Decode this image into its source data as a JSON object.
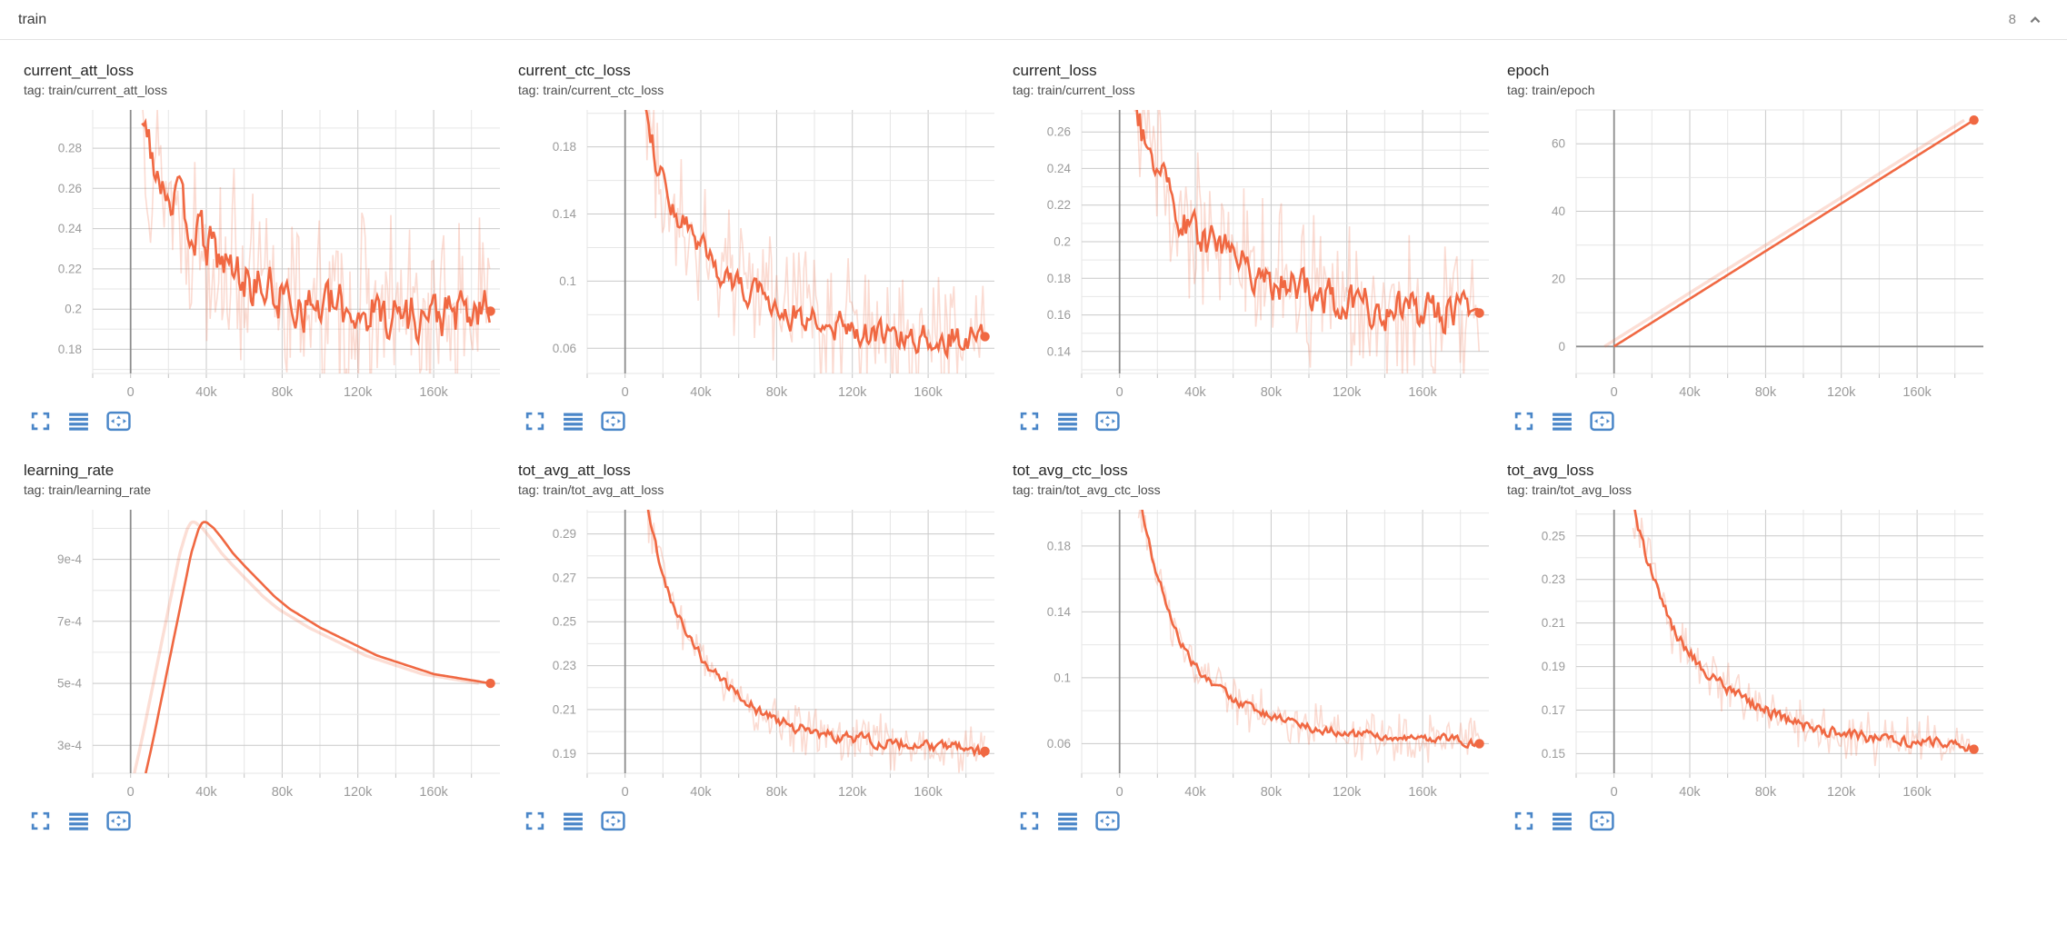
{
  "header": {
    "title": "train",
    "count": "8"
  },
  "colors": {
    "accent": "#f06842",
    "raw_opacity": 0.24,
    "icon_blue": "#4a86c8",
    "zero_line": "#8d8d8d",
    "grid_major": "#c9c9c9",
    "grid_minor": "#e6e6e6",
    "tick_label": "#9b9b9b"
  },
  "axis": {
    "x_domain": [
      -20000,
      195000
    ],
    "x_minor_step": 20000,
    "x_ticks": [
      {
        "v": 0,
        "label": "0"
      },
      {
        "v": 40000,
        "label": "40k"
      },
      {
        "v": 80000,
        "label": "80k"
      },
      {
        "v": 120000,
        "label": "120k"
      },
      {
        "v": 160000,
        "label": "160k"
      }
    ]
  },
  "chart_data": [
    {
      "type": "line",
      "title": "current_att_loss",
      "tag": "tag: train/current_att_loss",
      "y_domain": [
        0.168,
        0.299
      ],
      "y_minor_step": 0.01,
      "y_ticks": [
        {
          "v": 0.18,
          "label": "0.18"
        },
        {
          "v": 0.2,
          "label": "0.2"
        },
        {
          "v": 0.22,
          "label": "0.22"
        },
        {
          "v": 0.24,
          "label": "0.24"
        },
        {
          "v": 0.26,
          "label": "0.26"
        },
        {
          "v": 0.28,
          "label": "0.28"
        }
      ],
      "smoothed": [
        [
          6000,
          0.302
        ],
        [
          10000,
          0.285
        ],
        [
          14000,
          0.272
        ],
        [
          18000,
          0.262
        ],
        [
          22000,
          0.258
        ],
        [
          26000,
          0.25
        ],
        [
          30000,
          0.245
        ],
        [
          35000,
          0.237
        ],
        [
          40000,
          0.232
        ],
        [
          45000,
          0.227
        ],
        [
          50000,
          0.222
        ],
        [
          60000,
          0.215
        ],
        [
          70000,
          0.21
        ],
        [
          80000,
          0.206
        ],
        [
          90000,
          0.203
        ],
        [
          100000,
          0.201
        ],
        [
          110000,
          0.2
        ],
        [
          120000,
          0.199
        ],
        [
          130000,
          0.198
        ],
        [
          140000,
          0.198
        ],
        [
          150000,
          0.197
        ],
        [
          160000,
          0.197
        ],
        [
          170000,
          0.197
        ],
        [
          180000,
          0.197
        ],
        [
          190000,
          0.199
        ]
      ],
      "line_noise": 0.0085,
      "raw_noise": 0.02,
      "final_value": 0.199
    },
    {
      "type": "line",
      "title": "current_ctc_loss",
      "tag": "tag: train/current_ctc_loss",
      "y_domain": [
        0.045,
        0.202
      ],
      "y_minor_step": 0.02,
      "y_ticks": [
        {
          "v": 0.06,
          "label": "0.06"
        },
        {
          "v": 0.1,
          "label": "0.1"
        },
        {
          "v": 0.14,
          "label": "0.14"
        },
        {
          "v": 0.18,
          "label": "0.18"
        }
      ],
      "smoothed": [
        [
          8000,
          0.21
        ],
        [
          12000,
          0.195
        ],
        [
          16000,
          0.175
        ],
        [
          20000,
          0.16
        ],
        [
          24000,
          0.148
        ],
        [
          28000,
          0.138
        ],
        [
          32000,
          0.13
        ],
        [
          36000,
          0.124
        ],
        [
          40000,
          0.118
        ],
        [
          45000,
          0.112
        ],
        [
          50000,
          0.107
        ],
        [
          55000,
          0.102
        ],
        [
          60000,
          0.098
        ],
        [
          70000,
          0.091
        ],
        [
          80000,
          0.085
        ],
        [
          90000,
          0.08
        ],
        [
          100000,
          0.077
        ],
        [
          110000,
          0.074
        ],
        [
          120000,
          0.072
        ],
        [
          130000,
          0.07
        ],
        [
          140000,
          0.069
        ],
        [
          150000,
          0.068
        ],
        [
          160000,
          0.067
        ],
        [
          170000,
          0.066
        ],
        [
          180000,
          0.066
        ],
        [
          190000,
          0.067
        ]
      ],
      "line_noise": 0.0065,
      "raw_noise": 0.016,
      "final_value": 0.067
    },
    {
      "type": "line",
      "title": "current_loss",
      "tag": "tag: train/current_loss",
      "y_domain": [
        0.128,
        0.272
      ],
      "y_minor_step": 0.01,
      "y_ticks": [
        {
          "v": 0.14,
          "label": "0.14"
        },
        {
          "v": 0.16,
          "label": "0.16"
        },
        {
          "v": 0.18,
          "label": "0.18"
        },
        {
          "v": 0.2,
          "label": "0.2"
        },
        {
          "v": 0.22,
          "label": "0.22"
        },
        {
          "v": 0.24,
          "label": "0.24"
        },
        {
          "v": 0.26,
          "label": "0.26"
        }
      ],
      "smoothed": [
        [
          8000,
          0.275
        ],
        [
          12000,
          0.258
        ],
        [
          16000,
          0.245
        ],
        [
          20000,
          0.236
        ],
        [
          24000,
          0.228
        ],
        [
          28000,
          0.221
        ],
        [
          32000,
          0.216
        ],
        [
          36000,
          0.211
        ],
        [
          40000,
          0.207
        ],
        [
          45000,
          0.202
        ],
        [
          50000,
          0.198
        ],
        [
          55000,
          0.194
        ],
        [
          60000,
          0.191
        ],
        [
          70000,
          0.185
        ],
        [
          80000,
          0.18
        ],
        [
          90000,
          0.175
        ],
        [
          100000,
          0.172
        ],
        [
          110000,
          0.169
        ],
        [
          120000,
          0.167
        ],
        [
          130000,
          0.165
        ],
        [
          140000,
          0.163
        ],
        [
          150000,
          0.162
        ],
        [
          160000,
          0.161
        ],
        [
          170000,
          0.16
        ],
        [
          180000,
          0.159
        ],
        [
          190000,
          0.161
        ]
      ],
      "line_noise": 0.0075,
      "raw_noise": 0.017,
      "final_value": 0.161
    },
    {
      "type": "line",
      "title": "epoch",
      "tag": "tag: train/epoch",
      "y_domain": [
        -8,
        70
      ],
      "y_minor_step": 10,
      "y_ticks": [
        {
          "v": 0,
          "label": "0"
        },
        {
          "v": 20,
          "label": "20"
        },
        {
          "v": 40,
          "label": "40"
        },
        {
          "v": 60,
          "label": "60"
        }
      ],
      "smoothed": [
        [
          0,
          0
        ],
        [
          190000,
          67
        ]
      ],
      "line_noise": 0,
      "raw_noise": 0,
      "raw_shift_x": -5000,
      "final_value": 67
    },
    {
      "type": "line",
      "title": "learning_rate",
      "tag": "tag: train/learning_rate",
      "y_domain": [
        0.00021,
        0.00106
      ],
      "y_minor_step": 0.0001,
      "y_ticks": [
        {
          "v": 0.0003,
          "label": "3e-4"
        },
        {
          "v": 0.0005,
          "label": "5e-4"
        },
        {
          "v": 0.0007,
          "label": "7e-4"
        },
        {
          "v": 0.0009,
          "label": "9e-4"
        }
      ],
      "smoothed": [
        [
          8000,
          0.00021
        ],
        [
          12000,
          0.00032
        ],
        [
          16000,
          0.00044
        ],
        [
          20000,
          0.00056
        ],
        [
          24000,
          0.00068
        ],
        [
          28000,
          0.0008
        ],
        [
          32000,
          0.00092
        ],
        [
          36000,
          0.001
        ],
        [
          38000,
          0.00102
        ],
        [
          40000,
          0.00102
        ],
        [
          44000,
          0.001
        ],
        [
          48000,
          0.00097
        ],
        [
          54000,
          0.00092
        ],
        [
          60000,
          0.00088
        ],
        [
          68000,
          0.00083
        ],
        [
          76000,
          0.00078
        ],
        [
          84000,
          0.00074
        ],
        [
          92000,
          0.00071
        ],
        [
          100000,
          0.00068
        ],
        [
          110000,
          0.00065
        ],
        [
          120000,
          0.00062
        ],
        [
          130000,
          0.00059
        ],
        [
          140000,
          0.00057
        ],
        [
          150000,
          0.00055
        ],
        [
          160000,
          0.00053
        ],
        [
          170000,
          0.00052
        ],
        [
          180000,
          0.00051
        ],
        [
          190000,
          0.0005
        ]
      ],
      "line_noise": 0,
      "raw_noise": 0,
      "raw_shift_x": -6000,
      "final_value": 0.0005
    },
    {
      "type": "line",
      "title": "tot_avg_att_loss",
      "tag": "tag: train/tot_avg_att_loss",
      "y_domain": [
        0.181,
        0.301
      ],
      "y_minor_step": 0.01,
      "y_ticks": [
        {
          "v": 0.19,
          "label": "0.19"
        },
        {
          "v": 0.21,
          "label": "0.21"
        },
        {
          "v": 0.23,
          "label": "0.23"
        },
        {
          "v": 0.25,
          "label": "0.25"
        },
        {
          "v": 0.27,
          "label": "0.27"
        },
        {
          "v": 0.29,
          "label": "0.29"
        }
      ],
      "smoothed": [
        [
          8000,
          0.315
        ],
        [
          12000,
          0.3
        ],
        [
          16000,
          0.285
        ],
        [
          20000,
          0.272
        ],
        [
          24000,
          0.262
        ],
        [
          28000,
          0.252
        ],
        [
          32000,
          0.244
        ],
        [
          36000,
          0.239
        ],
        [
          40000,
          0.234
        ],
        [
          45000,
          0.229
        ],
        [
          50000,
          0.224
        ],
        [
          55000,
          0.22
        ],
        [
          60000,
          0.216
        ],
        [
          70000,
          0.21
        ],
        [
          80000,
          0.206
        ],
        [
          90000,
          0.202
        ],
        [
          100000,
          0.2
        ],
        [
          110000,
          0.198
        ],
        [
          120000,
          0.197
        ],
        [
          130000,
          0.196
        ],
        [
          140000,
          0.195
        ],
        [
          150000,
          0.194
        ],
        [
          160000,
          0.193
        ],
        [
          170000,
          0.193
        ],
        [
          180000,
          0.192
        ],
        [
          190000,
          0.191
        ]
      ],
      "line_noise": 0.0018,
      "raw_noise": 0.005,
      "final_value": 0.191
    },
    {
      "type": "line",
      "title": "tot_avg_ctc_loss",
      "tag": "tag: train/tot_avg_ctc_loss",
      "y_domain": [
        0.042,
        0.202
      ],
      "y_minor_step": 0.02,
      "y_ticks": [
        {
          "v": 0.06,
          "label": "0.06"
        },
        {
          "v": 0.1,
          "label": "0.1"
        },
        {
          "v": 0.14,
          "label": "0.14"
        },
        {
          "v": 0.18,
          "label": "0.18"
        }
      ],
      "smoothed": [
        [
          10000,
          0.21
        ],
        [
          14000,
          0.19
        ],
        [
          18000,
          0.17
        ],
        [
          22000,
          0.155
        ],
        [
          26000,
          0.14
        ],
        [
          30000,
          0.128
        ],
        [
          34000,
          0.118
        ],
        [
          38000,
          0.11
        ],
        [
          42000,
          0.104
        ],
        [
          46000,
          0.099
        ],
        [
          50000,
          0.095
        ],
        [
          55000,
          0.091
        ],
        [
          60000,
          0.087
        ],
        [
          65000,
          0.084
        ],
        [
          70000,
          0.081
        ],
        [
          75000,
          0.079
        ],
        [
          80000,
          0.077
        ],
        [
          90000,
          0.073
        ],
        [
          100000,
          0.07
        ],
        [
          110000,
          0.068
        ],
        [
          120000,
          0.066
        ],
        [
          130000,
          0.065
        ],
        [
          140000,
          0.064
        ],
        [
          150000,
          0.064
        ],
        [
          160000,
          0.063
        ],
        [
          170000,
          0.063
        ],
        [
          180000,
          0.062
        ],
        [
          190000,
          0.06
        ]
      ],
      "line_noise": 0.0018,
      "raw_noise": 0.006,
      "final_value": 0.06
    },
    {
      "type": "line",
      "title": "tot_avg_loss",
      "tag": "tag: train/tot_avg_loss",
      "y_domain": [
        0.141,
        0.262
      ],
      "y_minor_step": 0.01,
      "y_ticks": [
        {
          "v": 0.15,
          "label": "0.15"
        },
        {
          "v": 0.17,
          "label": "0.17"
        },
        {
          "v": 0.19,
          "label": "0.19"
        },
        {
          "v": 0.21,
          "label": "0.21"
        },
        {
          "v": 0.23,
          "label": "0.23"
        },
        {
          "v": 0.25,
          "label": "0.25"
        }
      ],
      "smoothed": [
        [
          10000,
          0.265
        ],
        [
          14000,
          0.25
        ],
        [
          18000,
          0.238
        ],
        [
          22000,
          0.229
        ],
        [
          26000,
          0.22
        ],
        [
          30000,
          0.209
        ],
        [
          34000,
          0.203
        ],
        [
          38000,
          0.198
        ],
        [
          42000,
          0.194
        ],
        [
          46000,
          0.19
        ],
        [
          50000,
          0.187
        ],
        [
          55000,
          0.183
        ],
        [
          60000,
          0.18
        ],
        [
          65000,
          0.177
        ],
        [
          70000,
          0.174
        ],
        [
          75000,
          0.172
        ],
        [
          80000,
          0.17
        ],
        [
          90000,
          0.166
        ],
        [
          100000,
          0.163
        ],
        [
          110000,
          0.161
        ],
        [
          120000,
          0.159
        ],
        [
          130000,
          0.158
        ],
        [
          140000,
          0.157
        ],
        [
          150000,
          0.156
        ],
        [
          160000,
          0.156
        ],
        [
          170000,
          0.155
        ],
        [
          180000,
          0.154
        ],
        [
          190000,
          0.152
        ]
      ],
      "line_noise": 0.0018,
      "raw_noise": 0.005,
      "final_value": 0.152
    }
  ]
}
